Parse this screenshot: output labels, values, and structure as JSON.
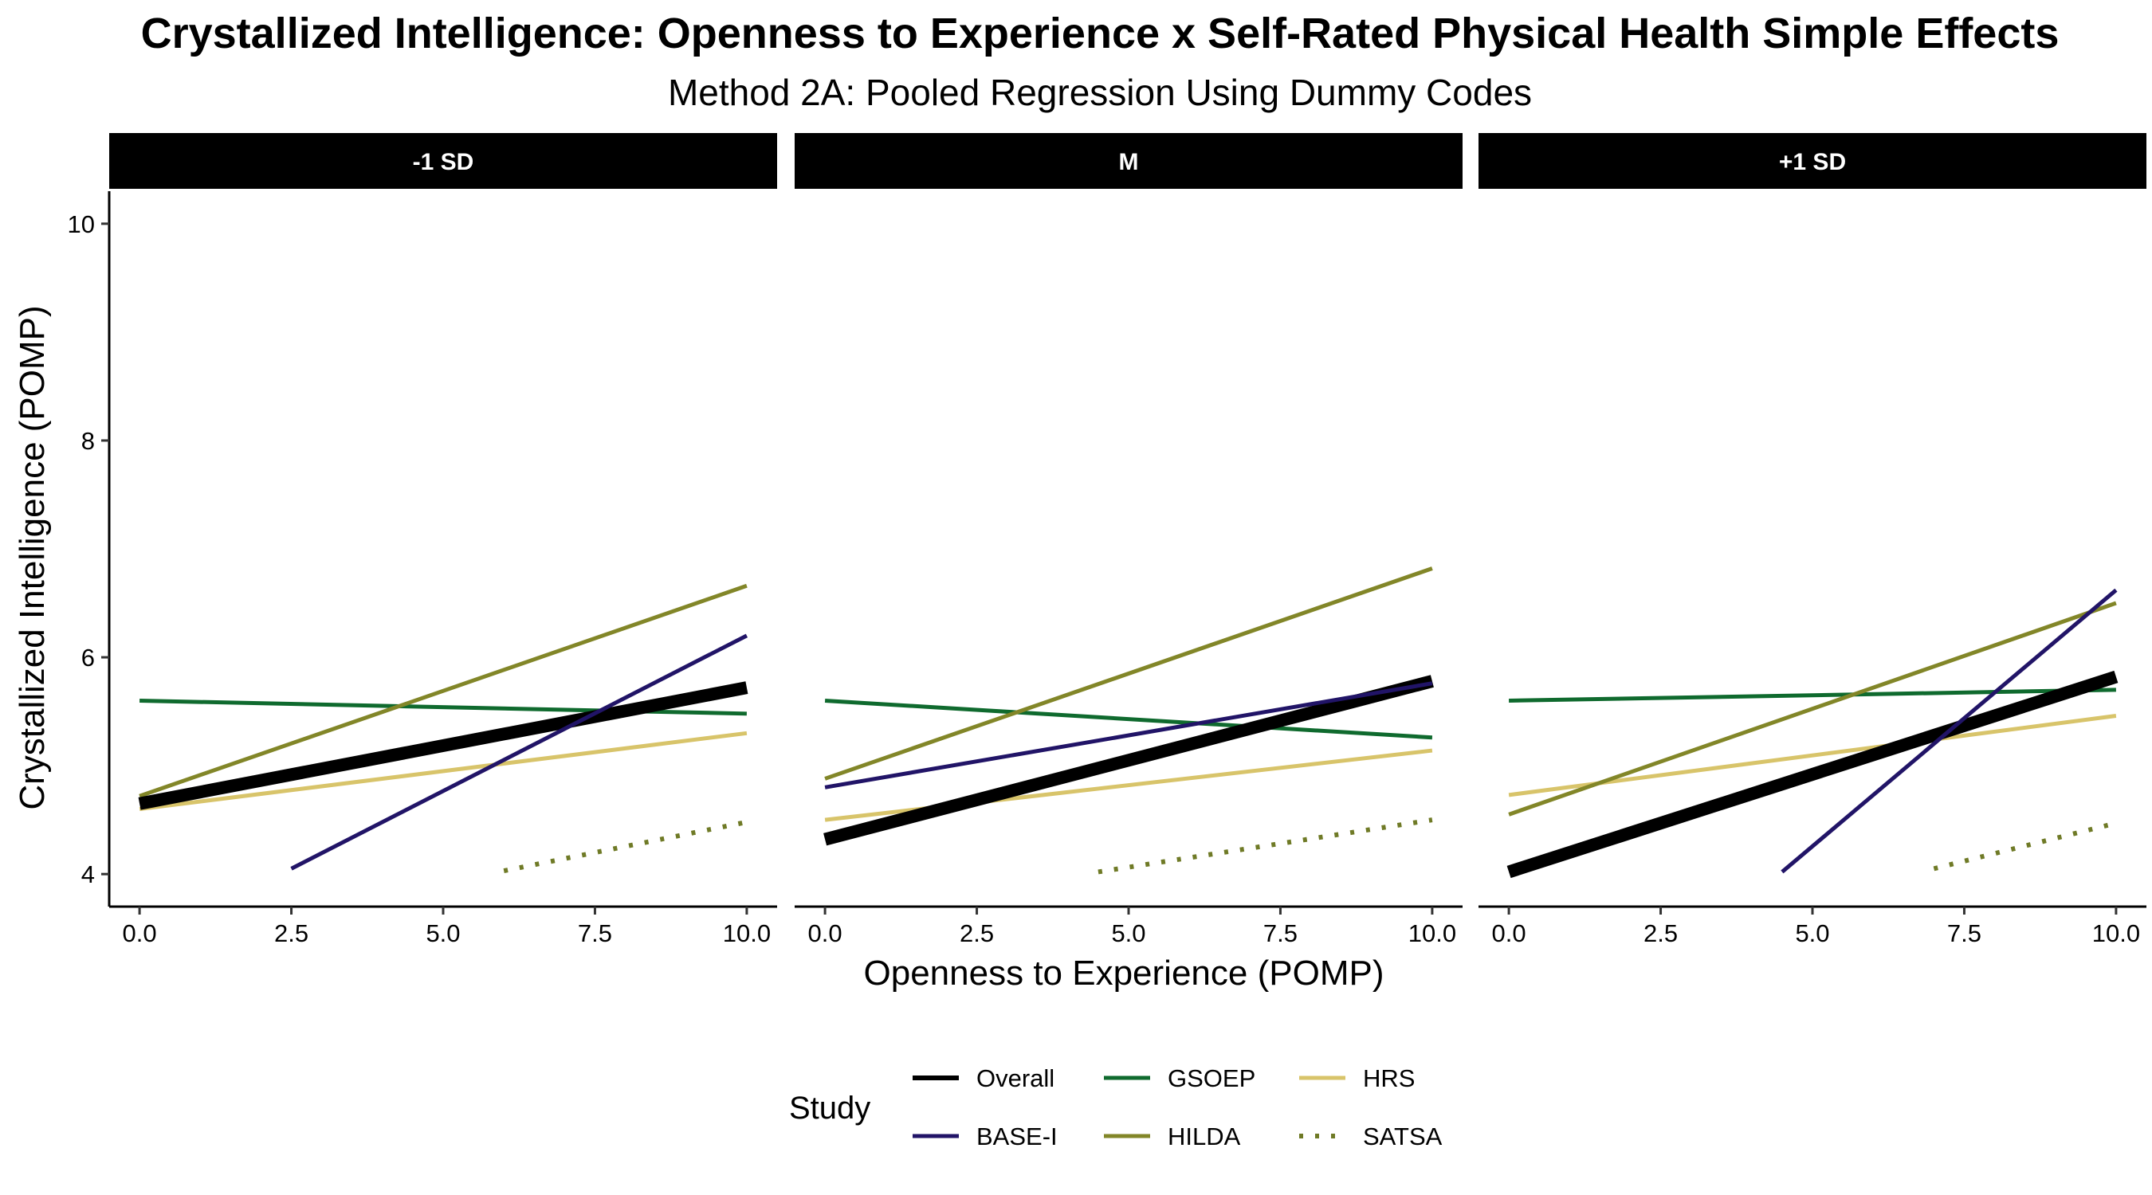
{
  "chart_data": {
    "type": "line",
    "title": "Crystallized Intelligence: Openness to Experience x Self-Rated Physical Health Simple Effects",
    "subtitle": "Method 2A: Pooled Regression Using Dummy Codes",
    "xlabel": "Openness to Experience (POMP)",
    "ylabel": "Crystallized Intelligence (POMP)",
    "xlim": [
      -0.5,
      10.5
    ],
    "ylim": [
      3.7,
      10.3
    ],
    "x_ticks": [
      "0.0",
      "2.5",
      "5.0",
      "7.5",
      "10.0"
    ],
    "y_ticks": [
      "4",
      "6",
      "8",
      "10"
    ],
    "grid": false,
    "legend": {
      "title": "Study",
      "position": "bottom",
      "entries": [
        "Overall",
        "BASE-I",
        "GSOEP",
        "HILDA",
        "HRS",
        "SATSA"
      ]
    },
    "series_styles": {
      "Overall": {
        "color": "#000000",
        "width": 16,
        "dash": ""
      },
      "BASE-I": {
        "color": "#211467",
        "width": 5,
        "dash": ""
      },
      "GSOEP": {
        "color": "#0f6a2e",
        "width": 5,
        "dash": ""
      },
      "HILDA": {
        "color": "#828628",
        "width": 5,
        "dash": ""
      },
      "HRS": {
        "color": "#d8c46a",
        "width": 5,
        "dash": ""
      },
      "SATSA": {
        "color": "#6f7a26",
        "width": 6,
        "dash": "5,15"
      }
    },
    "panels": [
      {
        "facet": "-1 SD",
        "series": [
          {
            "name": "Overall",
            "x": [
              0,
              10
            ],
            "y": [
              4.65,
              5.72
            ]
          },
          {
            "name": "BASE-I",
            "x": [
              2.5,
              10
            ],
            "y": [
              4.05,
              6.2
            ]
          },
          {
            "name": "GSOEP",
            "x": [
              0,
              10
            ],
            "y": [
              5.6,
              5.48
            ]
          },
          {
            "name": "HILDA",
            "x": [
              0,
              10
            ],
            "y": [
              4.72,
              6.66
            ]
          },
          {
            "name": "HRS",
            "x": [
              0,
              10
            ],
            "y": [
              4.6,
              5.3
            ]
          },
          {
            "name": "SATSA",
            "x": [
              6,
              10
            ],
            "y": [
              4.03,
              4.48
            ]
          }
        ]
      },
      {
        "facet": "M",
        "series": [
          {
            "name": "Overall",
            "x": [
              0,
              10
            ],
            "y": [
              4.32,
              5.78
            ]
          },
          {
            "name": "BASE-I",
            "x": [
              0,
              10
            ],
            "y": [
              4.8,
              5.76
            ]
          },
          {
            "name": "GSOEP",
            "x": [
              0,
              10
            ],
            "y": [
              5.6,
              5.26
            ]
          },
          {
            "name": "HILDA",
            "x": [
              0,
              10
            ],
            "y": [
              4.88,
              6.82
            ]
          },
          {
            "name": "HRS",
            "x": [
              0,
              10
            ],
            "y": [
              4.5,
              5.14
            ]
          },
          {
            "name": "SATSA",
            "x": [
              4.5,
              10
            ],
            "y": [
              4.02,
              4.5
            ]
          }
        ]
      },
      {
        "facet": "+1 SD",
        "series": [
          {
            "name": "Overall",
            "x": [
              0,
              10
            ],
            "y": [
              4.02,
              5.82
            ]
          },
          {
            "name": "BASE-I",
            "x": [
              4.5,
              10
            ],
            "y": [
              4.02,
              6.62
            ]
          },
          {
            "name": "GSOEP",
            "x": [
              0,
              10
            ],
            "y": [
              5.6,
              5.7
            ]
          },
          {
            "name": "HILDA",
            "x": [
              0,
              10
            ],
            "y": [
              4.55,
              6.5
            ]
          },
          {
            "name": "HRS",
            "x": [
              0,
              10
            ],
            "y": [
              4.73,
              5.46
            ]
          },
          {
            "name": "SATSA",
            "x": [
              7,
              10
            ],
            "y": [
              4.05,
              4.47
            ]
          }
        ]
      }
    ]
  }
}
